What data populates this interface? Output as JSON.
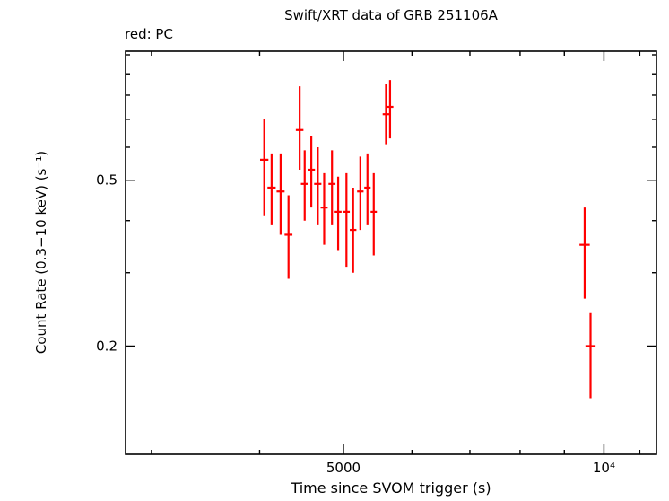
{
  "header": {
    "title": "Swift/XRT data of GRB 251106A",
    "legend": "red: PC"
  },
  "chart_data": {
    "type": "scatter",
    "title": "Swift/XRT data of GRB 251106A",
    "subtitle": "red: PC",
    "xlabel": "Time since SVOM trigger (s)",
    "ylabel": "Count Rate (0.3−10 keV) (s⁻¹)",
    "xscale": "log",
    "yscale": "log",
    "xlim": [
      2800,
      11500
    ],
    "ylim": [
      0.11,
      1.02
    ],
    "grid": false,
    "legend_position": "top-left",
    "x_major_ticks": [
      {
        "value": 5000,
        "label": "5000"
      },
      {
        "value": 10000,
        "label": "10⁴"
      }
    ],
    "x_minor_ticks": [
      3000,
      4000,
      6000,
      7000,
      8000,
      9000,
      11000
    ],
    "y_major_ticks": [
      {
        "value": 0.5,
        "label": "0.5"
      },
      {
        "value": 0.2,
        "label": "0.2"
      }
    ],
    "y_minor_ticks": [
      0.3,
      0.4,
      0.6,
      0.7,
      0.8,
      0.9,
      1.0
    ],
    "series": [
      {
        "name": "PC",
        "color": "#ff0000",
        "marker": "cross-with-error-bars",
        "points": [
          {
            "t": 4050,
            "t_err": 45,
            "rate": 0.56,
            "err_up": 0.14,
            "err_dn": 0.15
          },
          {
            "t": 4130,
            "t_err": 45,
            "rate": 0.48,
            "err_up": 0.1,
            "err_dn": 0.09
          },
          {
            "t": 4230,
            "t_err": 45,
            "rate": 0.47,
            "err_up": 0.11,
            "err_dn": 0.1
          },
          {
            "t": 4320,
            "t_err": 45,
            "rate": 0.37,
            "err_up": 0.09,
            "err_dn": 0.08
          },
          {
            "t": 4450,
            "t_err": 45,
            "rate": 0.66,
            "err_up": 0.18,
            "err_dn": 0.13
          },
          {
            "t": 4510,
            "t_err": 45,
            "rate": 0.49,
            "err_up": 0.1,
            "err_dn": 0.09
          },
          {
            "t": 4590,
            "t_err": 45,
            "rate": 0.53,
            "err_up": 0.11,
            "err_dn": 0.1
          },
          {
            "t": 4670,
            "t_err": 45,
            "rate": 0.49,
            "err_up": 0.11,
            "err_dn": 0.1
          },
          {
            "t": 4750,
            "t_err": 45,
            "rate": 0.43,
            "err_up": 0.09,
            "err_dn": 0.08
          },
          {
            "t": 4850,
            "t_err": 45,
            "rate": 0.49,
            "err_up": 0.1,
            "err_dn": 0.1
          },
          {
            "t": 4930,
            "t_err": 45,
            "rate": 0.42,
            "err_up": 0.09,
            "err_dn": 0.08
          },
          {
            "t": 5040,
            "t_err": 45,
            "rate": 0.42,
            "err_up": 0.1,
            "err_dn": 0.11
          },
          {
            "t": 5130,
            "t_err": 45,
            "rate": 0.38,
            "err_up": 0.1,
            "err_dn": 0.08
          },
          {
            "t": 5230,
            "t_err": 45,
            "rate": 0.47,
            "err_up": 0.1,
            "err_dn": 0.09
          },
          {
            "t": 5330,
            "t_err": 45,
            "rate": 0.48,
            "err_up": 0.1,
            "err_dn": 0.09
          },
          {
            "t": 5420,
            "t_err": 45,
            "rate": 0.42,
            "err_up": 0.1,
            "err_dn": 0.09
          },
          {
            "t": 5600,
            "t_err": 50,
            "rate": 0.72,
            "err_up": 0.13,
            "err_dn": 0.11
          },
          {
            "t": 5660,
            "t_err": 50,
            "rate": 0.75,
            "err_up": 0.12,
            "err_dn": 0.12
          },
          {
            "t": 9500,
            "t_err": 130,
            "rate": 0.35,
            "err_up": 0.08,
            "err_dn": 0.09
          },
          {
            "t": 9650,
            "t_err": 130,
            "rate": 0.2,
            "err_up": 0.04,
            "err_dn": 0.05
          }
        ]
      }
    ]
  }
}
